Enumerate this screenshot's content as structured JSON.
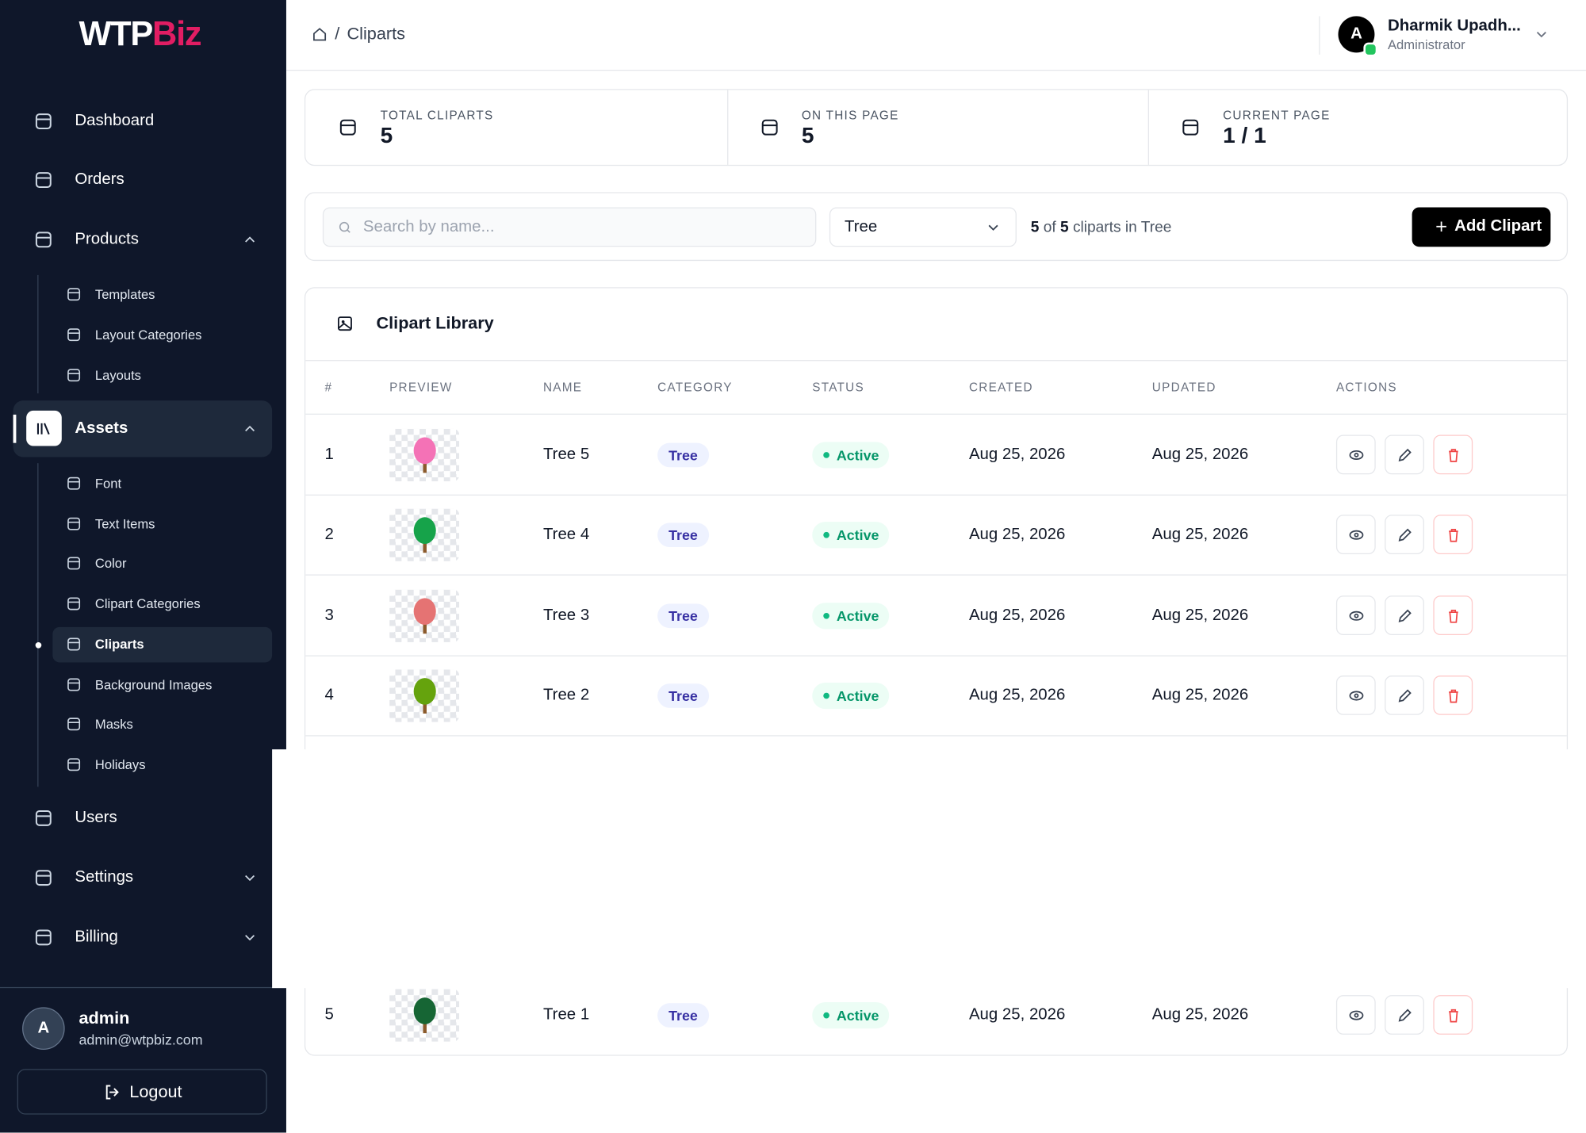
{
  "sidebar": {
    "logo_main": "WTP",
    "logo_accent": "Biz",
    "nav": [
      {
        "label": "Dashboard"
      },
      {
        "label": "Orders"
      },
      {
        "label": "Products",
        "children": [
          {
            "label": "Templates"
          },
          {
            "label": "Layout Categories"
          },
          {
            "label": "Layouts"
          }
        ]
      },
      {
        "label": "Assets",
        "children": [
          {
            "label": "Font"
          },
          {
            "label": "Text Items"
          },
          {
            "label": "Color"
          },
          {
            "label": "Clipart Categories"
          },
          {
            "label": "Cliparts"
          },
          {
            "label": "Background Images"
          },
          {
            "label": "Masks"
          },
          {
            "label": "Holidays"
          }
        ]
      },
      {
        "label": "Users"
      },
      {
        "label": "Settings"
      },
      {
        "label": "Billing"
      }
    ],
    "user": {
      "avatar": "A",
      "name": "admin",
      "email": "admin@wtpbiz.com"
    },
    "logout": "Logout"
  },
  "header": {
    "separator": "/",
    "breadcrumb": "Cliparts",
    "user": {
      "avatar": "A",
      "name": "Dharmik Upadh...",
      "role": "Administrator"
    }
  },
  "stats": [
    {
      "label": "TOTAL CLIPARTS",
      "value": "5"
    },
    {
      "label": "ON THIS PAGE",
      "value": "5"
    },
    {
      "label": "CURRENT PAGE",
      "value": "1 / 1"
    }
  ],
  "filter": {
    "search_placeholder": "Search by name...",
    "category": "Tree",
    "shown": "5",
    "of": "of",
    "total": "5",
    "suffix": "cliparts in Tree",
    "add_button": "Add Clipart"
  },
  "table": {
    "title": "Clipart Library",
    "columns": [
      "#",
      "PREVIEW",
      "NAME",
      "CATEGORY",
      "STATUS",
      "CREATED",
      "UPDATED",
      "ACTIONS"
    ],
    "rows": [
      [
        "1",
        "Tree 5",
        "Tree",
        "Active",
        "Aug 25, 2026",
        "Aug 25, 2026"
      ],
      [
        "2",
        "Tree 4",
        "Tree",
        "Active",
        "Aug 25, 2026",
        "Aug 25, 2026"
      ],
      [
        "3",
        "Tree 3",
        "Tree",
        "Active",
        "Aug 25, 2026",
        "Aug 25, 2026"
      ],
      [
        "4",
        "Tree 2",
        "Tree",
        "Active",
        "Aug 25, 2026",
        "Aug 25, 2026"
      ],
      [
        "5",
        "Tree 1",
        "Tree",
        "Active",
        "Aug 25, 2026",
        "Aug 25, 2026"
      ]
    ]
  }
}
